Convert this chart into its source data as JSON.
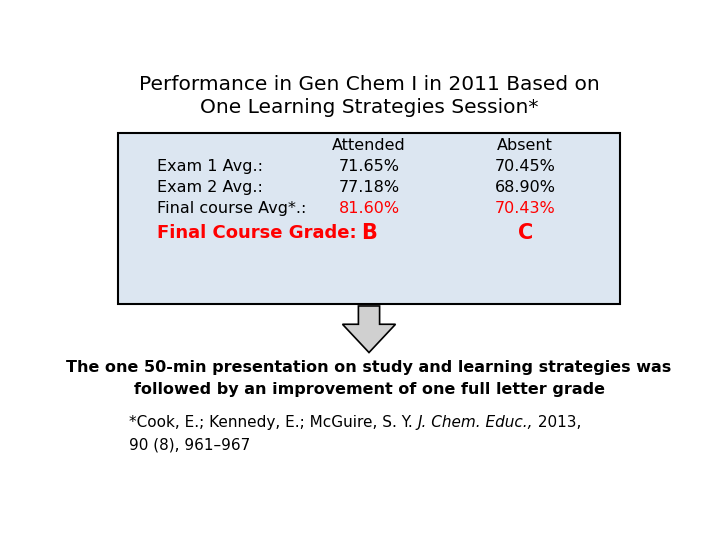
{
  "title_line1": "Performance in Gen Chem I in 2011 Based on",
  "title_line2": "One Learning Strategies Session*",
  "table_header_col2": "Attended",
  "table_header_col3": "Absent",
  "row1_label": "Exam 1 Avg.:",
  "row1_attended": "71.65%",
  "row1_absent": "70.45%",
  "row2_label": "Exam 2 Avg.:",
  "row2_attended": "77.18%",
  "row2_absent": "68.90%",
  "row3_label": "Final course Avg*.: ",
  "row3_attended": "81.60%",
  "row3_absent": "70.43%",
  "row4_label": "Final Course Grade:",
  "row4_attended": "B",
  "row4_absent": "C",
  "bottom_text_line1": "The one 50-min presentation on study and learning strategies was",
  "bottom_text_line2": "followed by an improvement of one full letter grade",
  "citation_line1": "*Cook, E.; Kennedy, E.; Mc​Guire, S. Y. ",
  "citation_line1_italic": "J. Chem. Educ.,",
  "citation_line1_end": " 2013,",
  "citation_line2": "90 (8), 961–967",
  "bg_color": "#ffffff",
  "table_bg_color": "#dce6f1",
  "table_border_color": "#000000",
  "red_color": "#ff0000",
  "black_color": "#000000",
  "arrow_fill": "#d0d0d0",
  "arrow_outline": "#000000"
}
